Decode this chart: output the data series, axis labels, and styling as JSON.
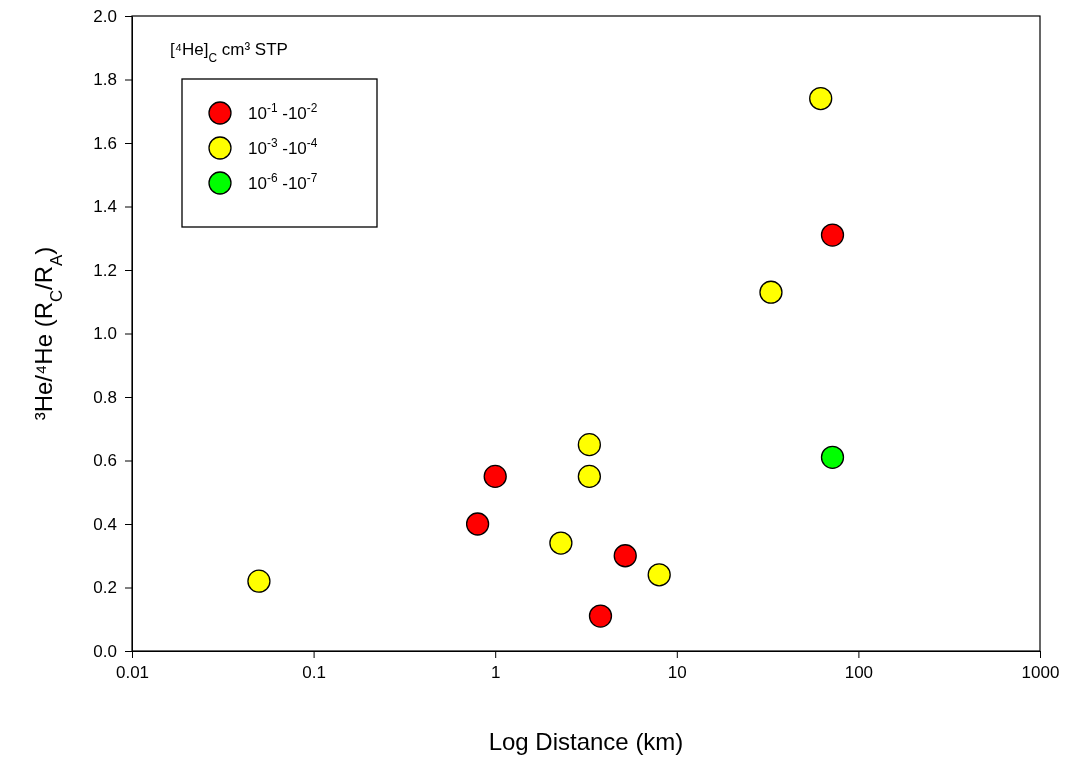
{
  "chart_data": {
    "type": "scatter",
    "xlabel": "Log Distance (km)",
    "ylabel": "³He/⁴He (R$_{C}$/R$_{A}$)",
    "legend_title": "[⁴He]$_{C}$ cm³ STP",
    "log": "x",
    "xlim": [
      0.01,
      1000
    ],
    "xticks": [
      0.01,
      0.1,
      1,
      10,
      100,
      1000
    ],
    "ylim": [
      0,
      2.0
    ],
    "yticks": [
      {
        "value": 0,
        "label": "0.0"
      },
      {
        "value": 0.2,
        "label": "0.2"
      },
      {
        "value": 0.4,
        "label": "0.4"
      },
      {
        "value": 0.6,
        "label": "0.6"
      },
      {
        "value": 0.8,
        "label": "0.8"
      },
      {
        "value": 1.0,
        "label": "1.0"
      },
      {
        "value": 1.2,
        "label": "1.2"
      },
      {
        "value": 1.4,
        "label": "1.4"
      },
      {
        "value": 1.6,
        "label": "1.6"
      },
      {
        "value": 1.8,
        "label": "1.8"
      },
      {
        "value": 2.0,
        "label": "2.0"
      }
    ],
    "grid": false,
    "legend": "top left",
    "marker": "circle",
    "series": [
      {
        "name": "10$^{-1}$ -10$^{-2}$",
        "color": "#ff0000",
        "x": [
          0.8,
          1.0,
          5.2,
          3.8,
          72
        ],
        "values": [
          0.4,
          0.55,
          0.3,
          0.11,
          1.31
        ]
      },
      {
        "name": "10$^{-3}$ -10$^{-4}$",
        "color": "#ffff00",
        "x": [
          0.05,
          2.3,
          3.3,
          3.3,
          8,
          33,
          62
        ],
        "values": [
          0.22,
          0.34,
          0.65,
          0.55,
          0.24,
          1.13,
          1.74
        ]
      },
      {
        "name": "10$^{-6}$ -10$^{-7}$",
        "color": "#00ff00",
        "x": [
          72
        ],
        "values": [
          0.61
        ]
      }
    ]
  }
}
